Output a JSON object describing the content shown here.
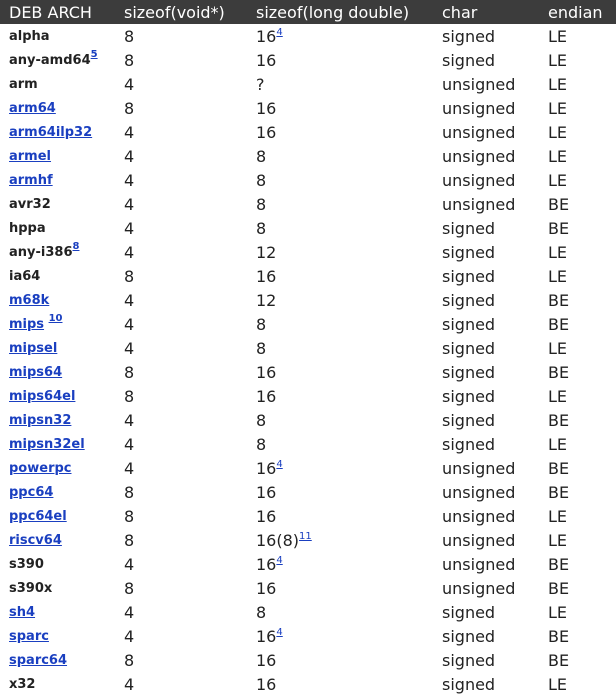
{
  "headers": [
    "DEB ARCH",
    "sizeof(void*)",
    "sizeof(long double)",
    "char",
    "endian"
  ],
  "rows": [
    {
      "arch": "alpha",
      "link": false,
      "void": "8",
      "ld": "16",
      "ld_note": "4",
      "char": "signed",
      "endian": "LE"
    },
    {
      "arch": "any-amd64",
      "link": false,
      "note": "5",
      "void": "8",
      "ld": "16",
      "char": "signed",
      "endian": "LE"
    },
    {
      "arch": "arm",
      "link": false,
      "void": "4",
      "ld": "?",
      "char": "unsigned",
      "endian": "LE"
    },
    {
      "arch": "arm64",
      "link": true,
      "void": "8",
      "ld": "16",
      "char": "unsigned",
      "endian": "LE"
    },
    {
      "arch": "arm64ilp32",
      "link": true,
      "void": "4",
      "ld": "16",
      "char": "unsigned",
      "endian": "LE"
    },
    {
      "arch": "armel",
      "link": true,
      "void": "4",
      "ld": "8",
      "char": "unsigned",
      "endian": "LE"
    },
    {
      "arch": "armhf",
      "link": true,
      "void": "4",
      "ld": "8",
      "char": "unsigned",
      "endian": "LE"
    },
    {
      "arch": "avr32",
      "link": false,
      "void": "4",
      "ld": "8",
      "char": "unsigned",
      "endian": "BE"
    },
    {
      "arch": "hppa",
      "link": false,
      "void": "4",
      "ld": "8",
      "char": "signed",
      "endian": "BE"
    },
    {
      "arch": "any-i386",
      "link": false,
      "note": "8",
      "void": "4",
      "ld": "12",
      "char": "signed",
      "endian": "LE"
    },
    {
      "arch": "ia64",
      "link": false,
      "void": "8",
      "ld": "16",
      "char": "signed",
      "endian": "LE"
    },
    {
      "arch": "m68k",
      "link": true,
      "void": "4",
      "ld": "12",
      "char": "signed",
      "endian": "BE"
    },
    {
      "arch": "mips",
      "link": true,
      "note": "10",
      "void": "4",
      "ld": "8",
      "char": "signed",
      "endian": "BE"
    },
    {
      "arch": "mipsel",
      "link": true,
      "void": "4",
      "ld": "8",
      "char": "signed",
      "endian": "LE"
    },
    {
      "arch": "mips64",
      "link": true,
      "void": "8",
      "ld": "16",
      "char": "signed",
      "endian": "BE"
    },
    {
      "arch": "mips64el",
      "link": true,
      "void": "8",
      "ld": "16",
      "char": "signed",
      "endian": "LE"
    },
    {
      "arch": "mipsn32",
      "link": true,
      "void": "4",
      "ld": "8",
      "char": "signed",
      "endian": "BE"
    },
    {
      "arch": "mipsn32el",
      "link": true,
      "void": "4",
      "ld": "8",
      "char": "signed",
      "endian": "LE"
    },
    {
      "arch": "powerpc",
      "link": true,
      "void": "4",
      "ld": "16",
      "ld_note": "4",
      "char": "unsigned",
      "endian": "BE"
    },
    {
      "arch": "ppc64",
      "link": true,
      "void": "8",
      "ld": "16",
      "char": "unsigned",
      "endian": "BE"
    },
    {
      "arch": "ppc64el",
      "link": true,
      "void": "8",
      "ld": "16",
      "char": "unsigned",
      "endian": "LE"
    },
    {
      "arch": "riscv64",
      "link": true,
      "void": "8",
      "ld": "16(8)",
      "ld_note": "11",
      "char": "unsigned",
      "endian": "LE"
    },
    {
      "arch": "s390",
      "link": false,
      "void": "4",
      "ld": "16",
      "ld_note": "4",
      "char": "unsigned",
      "endian": "BE"
    },
    {
      "arch": "s390x",
      "link": false,
      "void": "8",
      "ld": "16",
      "char": "unsigned",
      "endian": "BE"
    },
    {
      "arch": "sh4",
      "link": true,
      "void": "4",
      "ld": "8",
      "char": "signed",
      "endian": "LE"
    },
    {
      "arch": "sparc",
      "link": true,
      "void": "4",
      "ld": "16",
      "ld_note": "4",
      "char": "signed",
      "endian": "BE"
    },
    {
      "arch": "sparc64",
      "link": true,
      "void": "8",
      "ld": "16",
      "char": "signed",
      "endian": "BE"
    },
    {
      "arch": "x32",
      "link": false,
      "void": "4",
      "ld": "16",
      "char": "signed",
      "endian": "LE"
    }
  ]
}
